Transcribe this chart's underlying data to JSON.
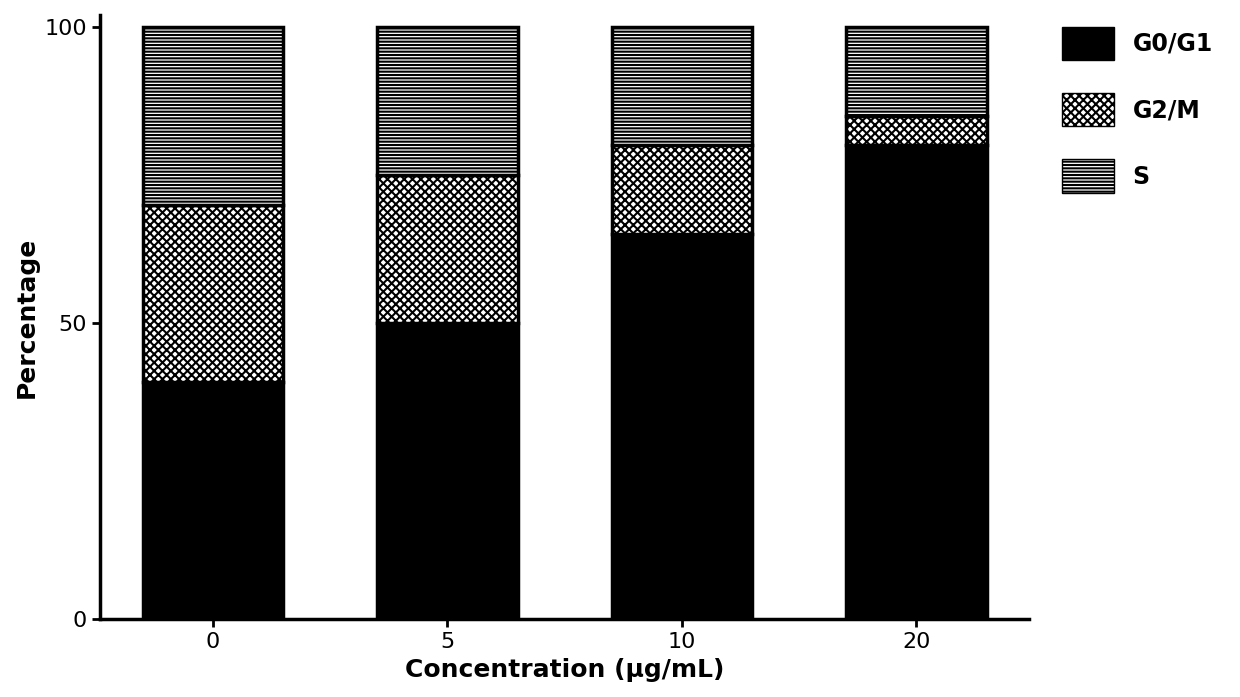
{
  "categories": [
    "0",
    "5",
    "10",
    "20"
  ],
  "xlabel": "Concentration (μg/mL)",
  "ylabel": "Percentage",
  "ylim": [
    0,
    102
  ],
  "yticks": [
    0,
    50,
    100
  ],
  "G0G1": [
    40,
    50,
    65,
    80
  ],
  "G2M": [
    30,
    25,
    15,
    5
  ],
  "S": [
    30,
    25,
    20,
    15
  ],
  "legend_labels": [
    "G0/G1",
    "G2/M",
    "S"
  ],
  "bar_width": 0.6,
  "background_color": "#ffffff",
  "bar_edge_color": "#000000",
  "bar_linewidth": 2.5,
  "xlabel_fontsize": 18,
  "ylabel_fontsize": 18,
  "tick_fontsize": 16,
  "legend_fontsize": 17,
  "title": ""
}
